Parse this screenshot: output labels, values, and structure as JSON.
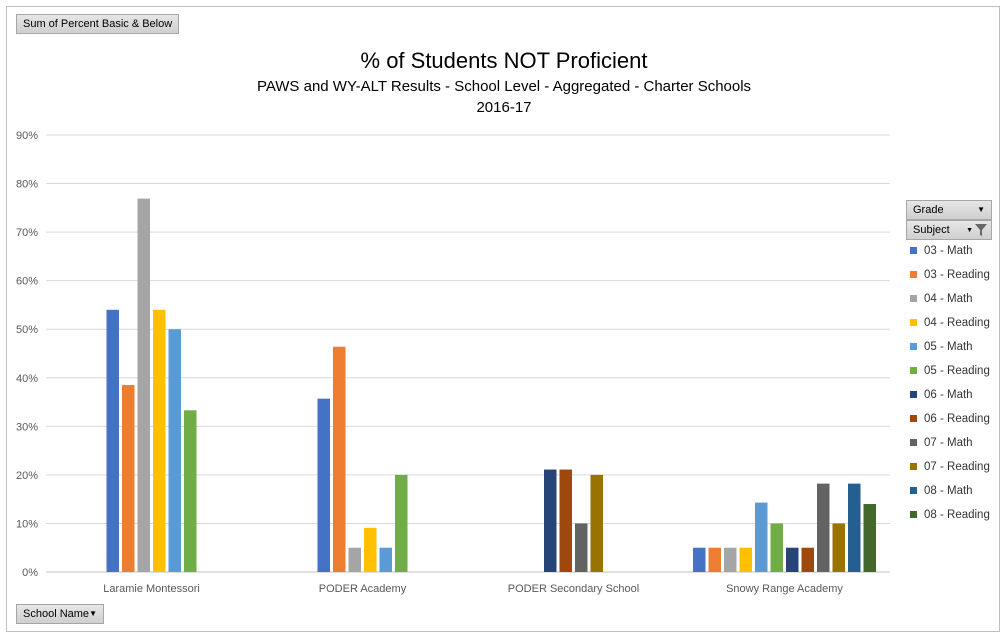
{
  "field_buttons": {
    "values_field": "Sum of Percent Basic & Below",
    "row_field": "School Name",
    "filter_grade": "Grade",
    "filter_subject": "Subject"
  },
  "icons": {
    "dropdown": "dropdown-arrow-icon",
    "filter": "filter-icon"
  },
  "chart_data": {
    "type": "bar",
    "title": "% of Students NOT Proficient",
    "subtitle": "PAWS and WY-ALT Results - School Level - Aggregated - Charter Schools",
    "subtitle2": "2016-17",
    "categories": [
      "Laramie Montessori",
      "PODER Academy",
      "PODER Secondary School",
      "Snowy Range Academy"
    ],
    "ylim": [
      0,
      90
    ],
    "yticks": [
      "0%",
      "10%",
      "20%",
      "30%",
      "40%",
      "50%",
      "60%",
      "70%",
      "80%",
      "90%"
    ],
    "grid": true,
    "legend_position": "right",
    "series": [
      {
        "name": "03 - Math",
        "color": "#4472c4",
        "values": [
          54,
          35.7,
          null,
          5
        ]
      },
      {
        "name": "03 - Reading",
        "color": "#ed7d31",
        "values": [
          38.5,
          46.4,
          null,
          5
        ]
      },
      {
        "name": "04 - Math",
        "color": "#a5a5a5",
        "values": [
          76.9,
          5,
          null,
          5
        ]
      },
      {
        "name": "04 - Reading",
        "color": "#ffc000",
        "values": [
          54,
          9.1,
          null,
          5
        ]
      },
      {
        "name": "05 - Math",
        "color": "#5b9bd5",
        "values": [
          50,
          5,
          null,
          14.3
        ]
      },
      {
        "name": "05 - Reading",
        "color": "#70ad47",
        "values": [
          33.3,
          20,
          null,
          10
        ]
      },
      {
        "name": "06 - Math",
        "color": "#264478",
        "values": [
          null,
          null,
          21.1,
          5
        ]
      },
      {
        "name": "06 - Reading",
        "color": "#9e480e",
        "values": [
          null,
          null,
          21.1,
          5
        ]
      },
      {
        "name": "07 - Math",
        "color": "#636363",
        "values": [
          null,
          null,
          10,
          18.2
        ]
      },
      {
        "name": "07 - Reading",
        "color": "#997300",
        "values": [
          null,
          null,
          20,
          10
        ]
      },
      {
        "name": "08 - Math",
        "color": "#255e91",
        "values": [
          null,
          null,
          null,
          18.2
        ]
      },
      {
        "name": "08 - Reading",
        "color": "#43682b",
        "values": [
          null,
          null,
          null,
          14
        ]
      }
    ]
  }
}
